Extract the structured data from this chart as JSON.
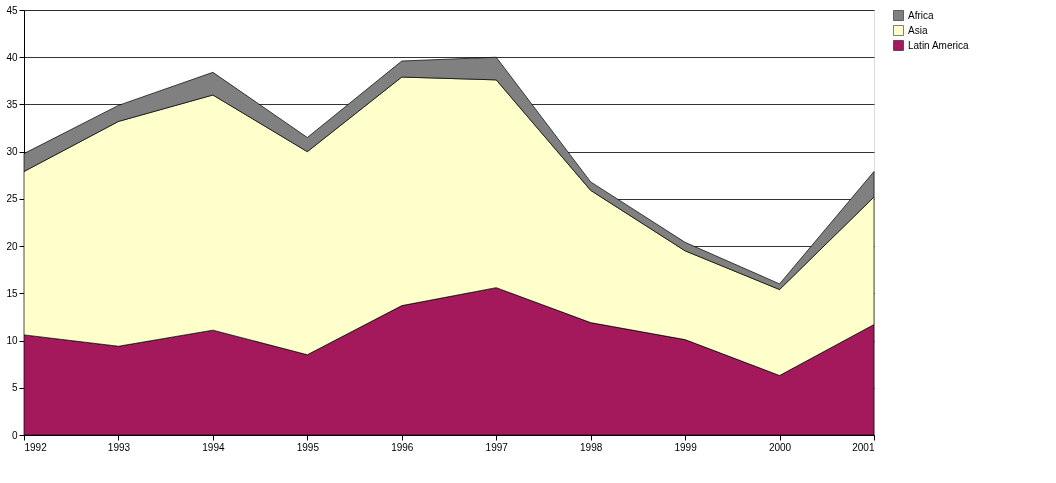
{
  "chart_data": {
    "type": "area",
    "stacked": true,
    "x": [
      1992,
      1993,
      1994,
      1995,
      1996,
      1997,
      1998,
      1999,
      2000,
      2001
    ],
    "xlim": [
      1992,
      2001
    ],
    "xticks": [
      1992,
      1993,
      1994,
      1995,
      1996,
      1997,
      1998,
      1999,
      2000,
      2001
    ],
    "ylim": [
      0,
      45
    ],
    "yticks": [
      0,
      5,
      10,
      15,
      20,
      25,
      30,
      35,
      40,
      45
    ],
    "grid": "y",
    "legend": "right",
    "series": [
      {
        "name": "Latin America",
        "color": "#a3195b",
        "values": [
          10.6,
          9.4,
          11.1,
          8.5,
          13.7,
          15.6,
          11.9,
          10.1,
          6.3,
          11.7
        ]
      },
      {
        "name": "Asia",
        "color": "#ffffcc",
        "values": [
          17.3,
          23.8,
          24.9,
          21.5,
          24.2,
          22.0,
          14.0,
          9.4,
          9.1,
          13.5
        ]
      },
      {
        "name": "Africa",
        "color": "#808080",
        "values": [
          1.9,
          1.7,
          2.4,
          1.5,
          1.7,
          2.4,
          0.9,
          0.9,
          0.6,
          2.7
        ]
      }
    ]
  }
}
